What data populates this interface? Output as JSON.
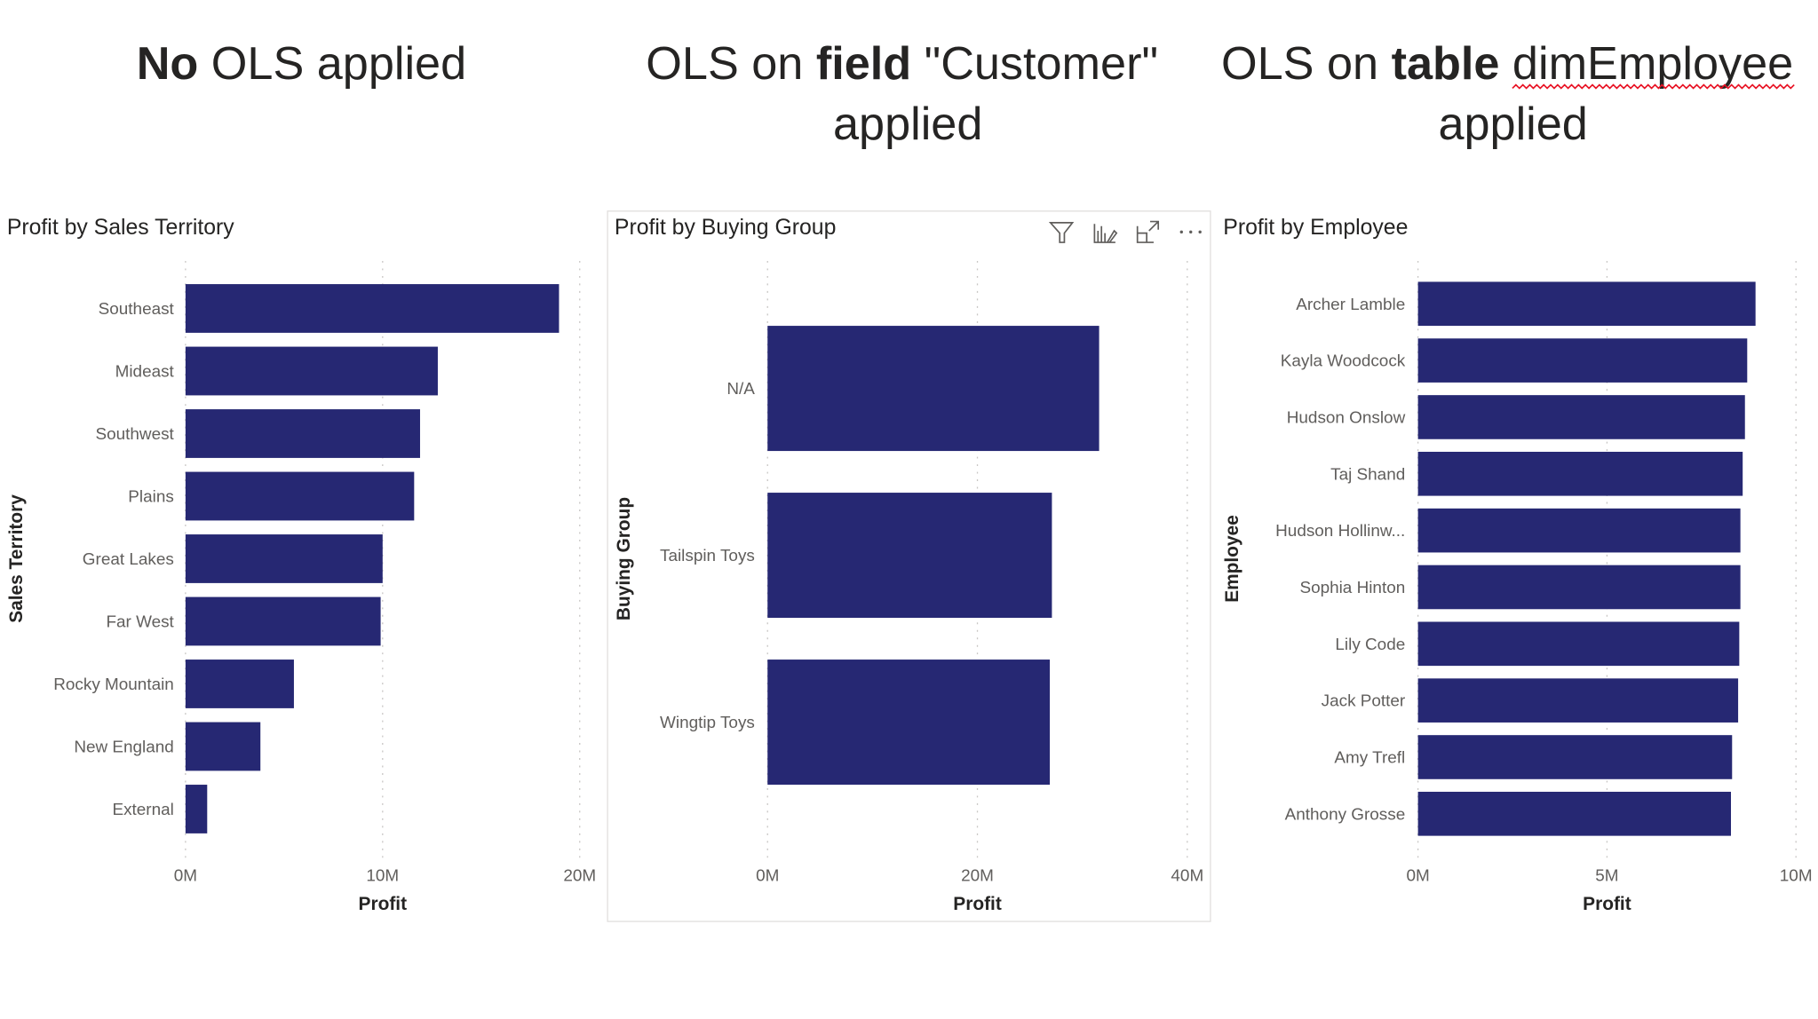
{
  "headings": [
    {
      "bold": "No",
      "rest": " OLS applied"
    },
    {
      "pre": "OLS on ",
      "bold": "field",
      "rest": " \"Customer\"",
      "line2": "applied"
    },
    {
      "pre": "OLS on ",
      "bold": "table",
      "rest": " ",
      "spell": "dimEmployee",
      "line2": "applied"
    }
  ],
  "visual_header_icons": [
    "filter-icon",
    "analytics-pencil-icon",
    "focus-mode-icon",
    "more-options-icon"
  ],
  "colors": {
    "bar": "#262873",
    "spellcheck": "#e81123"
  },
  "chart_data": [
    {
      "type": "bar",
      "orientation": "horizontal",
      "title": "Profit by Sales Territory",
      "xlabel": "Profit",
      "ylabel": "Sales Territory",
      "xlim": [
        0,
        20
      ],
      "xticks": [
        "0M",
        "10M",
        "20M"
      ],
      "grid": true,
      "categories": [
        "Southeast",
        "Mideast",
        "Southwest",
        "Plains",
        "Great Lakes",
        "Far West",
        "Rocky Mountain",
        "New England",
        "External"
      ],
      "values": [
        18.95,
        12.8,
        11.9,
        11.6,
        10.0,
        9.9,
        5.5,
        3.8,
        1.1
      ],
      "unit": "M"
    },
    {
      "type": "bar",
      "orientation": "horizontal",
      "title": "Profit by Buying Group",
      "xlabel": "Profit",
      "ylabel": "Buying Group",
      "xlim": [
        0,
        40
      ],
      "xticks": [
        "0M",
        "20M",
        "40M"
      ],
      "grid": true,
      "categories": [
        "N/A",
        "Tailspin Toys",
        "Wingtip Toys"
      ],
      "values": [
        31.6,
        27.1,
        26.9
      ],
      "unit": "M"
    },
    {
      "type": "bar",
      "orientation": "horizontal",
      "title": "Profit by Employee",
      "xlabel": "Profit",
      "ylabel": "Employee",
      "xlim": [
        0,
        10
      ],
      "xticks": [
        "0M",
        "5M",
        "10M"
      ],
      "grid": true,
      "categories": [
        "Archer Lamble",
        "Kayla Woodcock",
        "Hudson Onslow",
        "Taj Shand",
        "Hudson Hollinw...",
        "Sophia Hinton",
        "Lily Code",
        "Jack Potter",
        "Amy Trefl",
        "Anthony Grosse"
      ],
      "values": [
        8.93,
        8.71,
        8.65,
        8.59,
        8.53,
        8.53,
        8.5,
        8.47,
        8.31,
        8.28
      ],
      "unit": "M"
    }
  ]
}
